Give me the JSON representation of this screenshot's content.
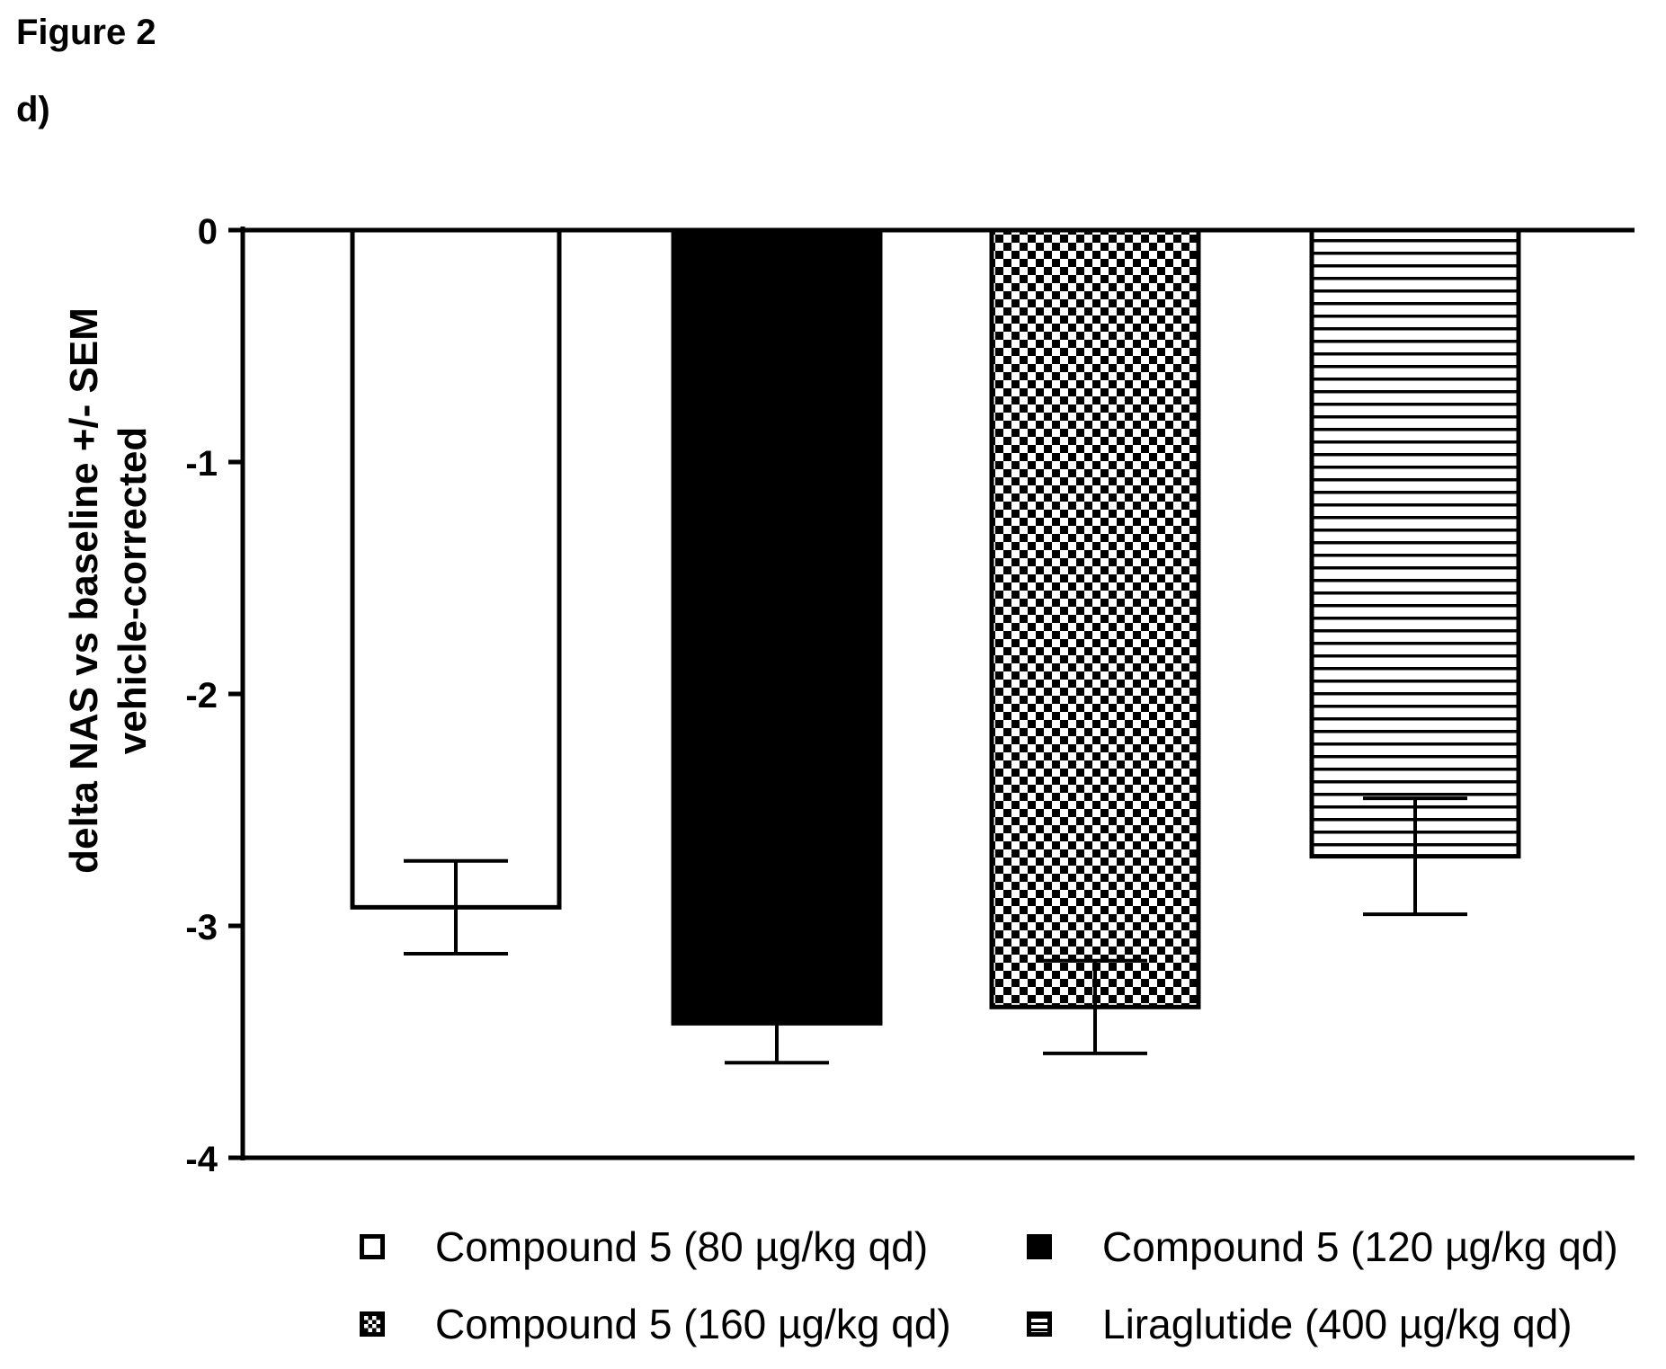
{
  "figure_title": "Figure 2",
  "panel_label": "d)",
  "chart_data": {
    "type": "bar",
    "title": "",
    "xlabel": "",
    "ylabel_lines": [
      "delta NAS vs baseline +/- SEM",
      "vehicle-corrected"
    ],
    "ylim": [
      -4,
      0
    ],
    "yticks": [
      0,
      -1,
      -2,
      -3,
      -4
    ],
    "ytick_labels": [
      "0",
      "-1",
      "-2",
      "-3",
      "-4"
    ],
    "grid": false,
    "legend_position": "bottom",
    "series": [
      {
        "name": "Compound 5 (80 µg/kg qd)",
        "value": -2.92,
        "sem": 0.2,
        "pattern": "open",
        "color": "#ffffff"
      },
      {
        "name": "Compound 5 (120 µg/kg qd)",
        "value": -3.42,
        "sem": 0.17,
        "pattern": "solid",
        "color": "#000000"
      },
      {
        "name": "Compound 5 (160 µg/kg qd)",
        "value": -3.35,
        "sem": 0.2,
        "pattern": "checker",
        "color": "#000000"
      },
      {
        "name": "Liraglutide (400 µg/kg qd)",
        "value": -2.7,
        "sem": 0.25,
        "pattern": "hstripes",
        "color": "#000000"
      }
    ]
  }
}
